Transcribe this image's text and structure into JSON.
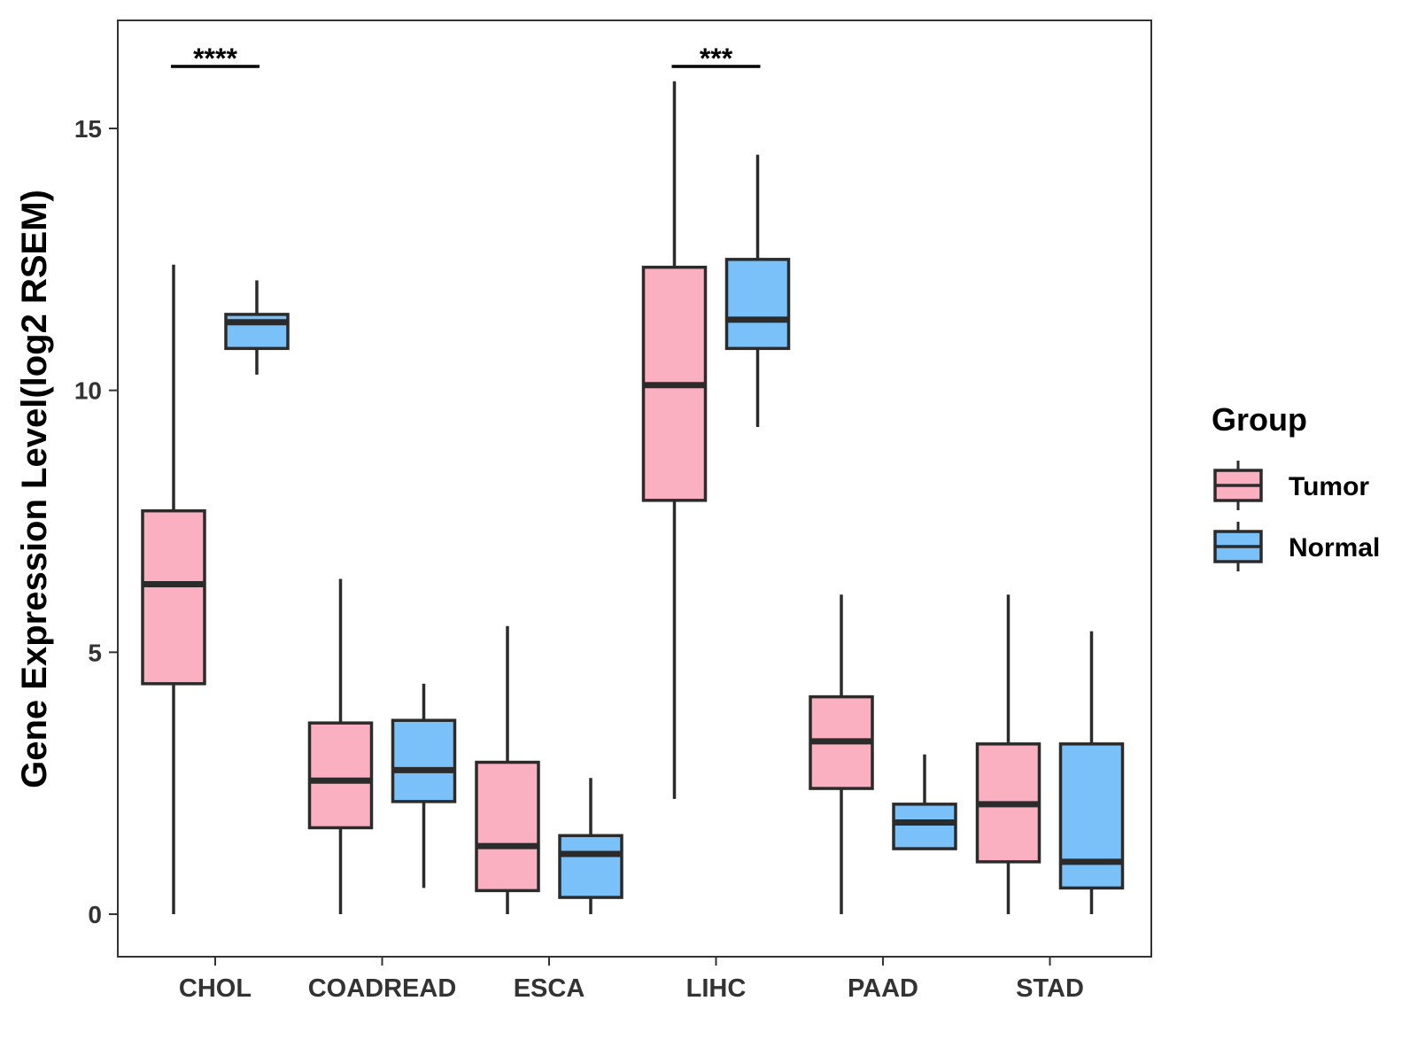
{
  "chart_data": {
    "type": "boxplot",
    "title": "",
    "xlabel": "",
    "ylabel": "Gene Expression Level(log2 RSEM)",
    "ylim": [
      -0.8,
      17.1
    ],
    "yticks": [
      0,
      5,
      10,
      15
    ],
    "ytick_labels": [
      "0",
      "5",
      "10",
      "15"
    ],
    "grid": false,
    "categories": [
      "CHOL",
      "COADREAD",
      "ESCA",
      "LIHC",
      "PAAD",
      "STAD"
    ],
    "legend": {
      "title": "Group",
      "position": "right",
      "entries": [
        "Tumor",
        "Normal"
      ]
    },
    "series": [
      {
        "name": "Tumor",
        "color": "#FBB0C2",
        "boxes": [
          {
            "whisker_low": 0.0,
            "q1": 4.4,
            "median": 6.3,
            "q3": 7.7,
            "whisker_high": 12.4
          },
          {
            "whisker_low": 0.0,
            "q1": 1.65,
            "median": 2.55,
            "q3": 3.65,
            "whisker_high": 6.4
          },
          {
            "whisker_low": 0.0,
            "q1": 0.45,
            "median": 1.3,
            "q3": 2.9,
            "whisker_high": 5.5
          },
          {
            "whisker_low": 2.2,
            "q1": 7.9,
            "median": 10.1,
            "q3": 12.35,
            "whisker_high": 15.9
          },
          {
            "whisker_low": 0.0,
            "q1": 2.4,
            "median": 3.3,
            "q3": 4.15,
            "whisker_high": 6.1
          },
          {
            "whisker_low": 0.0,
            "q1": 1.0,
            "median": 2.1,
            "q3": 3.25,
            "whisker_high": 6.1
          }
        ]
      },
      {
        "name": "Normal",
        "color": "#79C1F8",
        "boxes": [
          {
            "whisker_low": 10.3,
            "q1": 10.8,
            "median": 11.3,
            "q3": 11.45,
            "whisker_high": 12.1
          },
          {
            "whisker_low": 0.5,
            "q1": 2.15,
            "median": 2.75,
            "q3": 3.7,
            "whisker_high": 4.4
          },
          {
            "whisker_low": 0.0,
            "q1": 0.32,
            "median": 1.15,
            "q3": 1.5,
            "whisker_high": 2.6
          },
          {
            "whisker_low": 9.3,
            "q1": 10.8,
            "median": 11.35,
            "q3": 12.5,
            "whisker_high": 14.5
          },
          {
            "whisker_low": 1.25,
            "q1": 1.25,
            "median": 1.75,
            "q3": 2.1,
            "whisker_high": 3.05
          },
          {
            "whisker_low": 0.0,
            "q1": 0.5,
            "median": 1.0,
            "q3": 3.25,
            "whisker_high": 5.4
          }
        ]
      }
    ],
    "annotations": [
      {
        "category": "CHOL",
        "label": "****"
      },
      {
        "category": "LIHC",
        "label": "***"
      }
    ]
  }
}
